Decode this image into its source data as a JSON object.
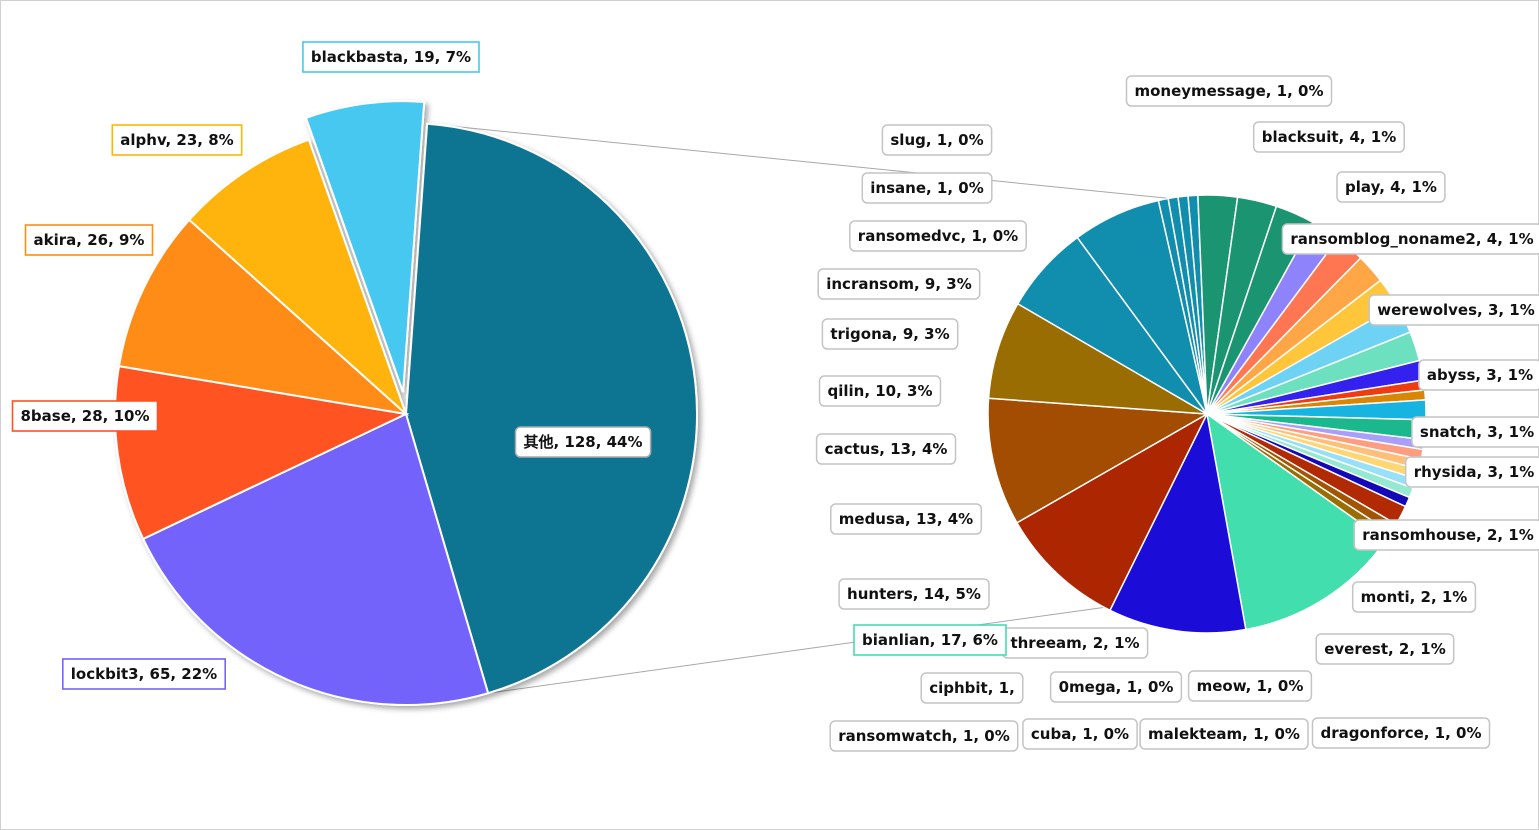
{
  "chart_data": [
    {
      "type": "pie",
      "title": "",
      "slices": [
        {
          "label": "blackbasta, 19, 7%",
          "name": "blackbasta",
          "value": 19,
          "percent": 7,
          "color": "#47c8f0",
          "exploded": true,
          "box": "#47c8f0"
        },
        {
          "label": "其他, 128, 44%",
          "name": "其他",
          "value": 128,
          "percent": 44,
          "color": "#0e7491",
          "box": "#aaaaaa"
        },
        {
          "label": "lockbit3, 65, 22%",
          "name": "lockbit3",
          "value": 65,
          "percent": 22,
          "color": "#7364fa",
          "box": "#7364fa"
        },
        {
          "label": "8base, 28, 10%",
          "name": "8base",
          "value": 28,
          "percent": 10,
          "color": "#ff5224",
          "box": "#ff5224"
        },
        {
          "label": "akira, 26, 9%",
          "name": "akira",
          "value": 26,
          "percent": 9,
          "color": "#ff8c13",
          "box": "#ff8c13"
        },
        {
          "label": "alphv, 23, 8%",
          "name": "alphv",
          "value": 23,
          "percent": 8,
          "color": "#ffb407",
          "box": "#ffb407"
        }
      ]
    },
    {
      "type": "pie",
      "title": "",
      "slices": [
        {
          "label": "moneymessage, 1, 0%",
          "name": "moneymessage",
          "value": 1,
          "percent": 0,
          "color": "#118dae"
        },
        {
          "label": "blacksuit, 4, 1%",
          "name": "blacksuit",
          "value": 4,
          "percent": 1,
          "color": "#1b9571"
        },
        {
          "label": "play, 4, 1%",
          "name": "play",
          "value": 4,
          "percent": 1,
          "color": "#1b9571"
        },
        {
          "label": "ransomblog_noname2, 4, 1%",
          "name": "ransomblog_noname2",
          "value": 4,
          "percent": 1,
          "color": "#1b9571"
        },
        {
          "label": "werewolves, 3, 1%",
          "name": "werewolves",
          "value": 3,
          "percent": 1,
          "color": "#8e83fb"
        },
        {
          "label": "abyss, 3, 1%",
          "name": "abyss",
          "value": 3,
          "percent": 1,
          "color": "#ff7653"
        },
        {
          "label": "snatch, 3, 1%",
          "name": "snatch",
          "value": 3,
          "percent": 1,
          "color": "#ffa646"
        },
        {
          "label": "rhysida, 3, 1%",
          "name": "rhysida",
          "value": 3,
          "percent": 1,
          "color": "#ffc63c"
        },
        {
          "label": "",
          "name": "",
          "value": 3,
          "percent": 1,
          "color": "#6dd2f4"
        },
        {
          "label": "",
          "name": "",
          "value": 3,
          "percent": 1,
          "color": "#6de0c0"
        },
        {
          "label": "ransomhouse, 2, 1%",
          "name": "ransomhouse",
          "value": 2,
          "percent": 1,
          "color": "#3322ee"
        },
        {
          "label": "",
          "name": "",
          "value": 1,
          "percent": 0,
          "color": "#ee3b10"
        },
        {
          "label": "",
          "name": "",
          "value": 1,
          "percent": 0,
          "color": "#d88604"
        },
        {
          "label": "monti, 2, 1%",
          "name": "monti",
          "value": 2,
          "percent": 1,
          "color": "#17b4e2"
        },
        {
          "label": "everest, 2, 1%",
          "name": "everest",
          "value": 2,
          "percent": 1,
          "color": "#1bb88e"
        },
        {
          "label": "dragonforce, 1, 0%",
          "name": "dragonforce",
          "value": 1,
          "percent": 0,
          "color": "#a99ff8"
        },
        {
          "label": "meow, 1, 0%",
          "name": "meow",
          "value": 1,
          "percent": 0,
          "color": "#ff9d80"
        },
        {
          "label": "malekteam, 1, 0%",
          "name": "malekteam",
          "value": 1,
          "percent": 0,
          "color": "#ffbe7a"
        },
        {
          "label": "cuba, 1, 0%",
          "name": "cuba",
          "value": 1,
          "percent": 0,
          "color": "#ffd674"
        },
        {
          "label": "0mega, 1, 0%",
          "name": "0mega",
          "value": 1,
          "percent": 0,
          "color": "#97e0f8"
        },
        {
          "label": "ransomwatch, 1, 0%",
          "name": "ransomwatch",
          "value": 1,
          "percent": 0,
          "color": "#95e8d2"
        },
        {
          "label": "ciphbit, 1,",
          "name": "ciphbit",
          "value": 1,
          "percent": 0,
          "color": "#1508b8"
        },
        {
          "label": "threeam, 2, 1%",
          "name": "threeam",
          "value": 2,
          "percent": 1,
          "color": "#b22a04"
        },
        {
          "label": "",
          "name": "",
          "value": 1,
          "percent": 0,
          "color": "#a35403"
        },
        {
          "label": "",
          "name": "",
          "value": 1,
          "percent": 0,
          "color": "#9a6d02"
        },
        {
          "label": "bianlian, 17, 6%",
          "name": "bianlian",
          "value": 17,
          "percent": 6,
          "color": "#43deae",
          "box": "#43deae"
        },
        {
          "label": "hunters, 14, 5%",
          "name": "hunters",
          "value": 14,
          "percent": 5,
          "color": "#1b0cd8"
        },
        {
          "label": "medusa, 13, 4%",
          "name": "medusa",
          "value": 13,
          "percent": 4,
          "color": "#ad2602"
        },
        {
          "label": "cactus, 13, 4%",
          "name": "cactus",
          "value": 13,
          "percent": 4,
          "color": "#a34d02"
        },
        {
          "label": "qilin, 10, 3%",
          "name": "qilin",
          "value": 10,
          "percent": 3,
          "color": "#9a6d02"
        },
        {
          "label": "trigona, 9, 3%",
          "name": "trigona",
          "value": 9,
          "percent": 3,
          "color": "#118dae"
        },
        {
          "label": "incransom, 9, 3%",
          "name": "incransom",
          "value": 9,
          "percent": 3,
          "color": "#118dae"
        },
        {
          "label": "ransomedvc, 1, 0%",
          "name": "ransomedvc",
          "value": 1,
          "percent": 0,
          "color": "#118dae"
        },
        {
          "label": "insane, 1, 0%",
          "name": "insane",
          "value": 1,
          "percent": 0,
          "color": "#118dae"
        },
        {
          "label": "slug, 1, 0%",
          "name": "slug",
          "value": 1,
          "percent": 0,
          "color": "#118dae"
        }
      ]
    }
  ]
}
